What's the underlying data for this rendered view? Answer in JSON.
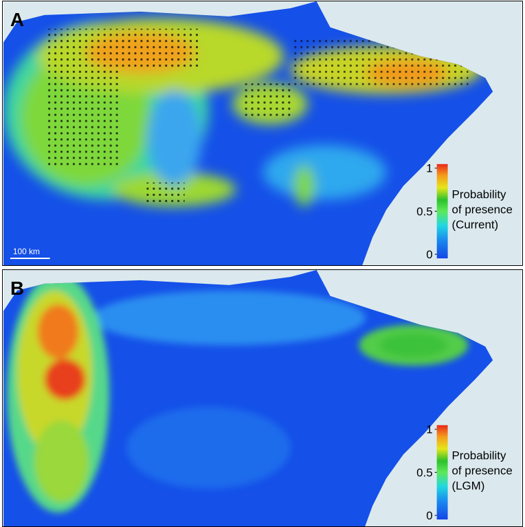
{
  "panels": [
    {
      "label": "A",
      "scale_bar": "100 km",
      "legend": {
        "title": [
          "Probability",
          "of presence",
          "(Current)"
        ],
        "ticks": [
          1,
          0.5,
          0
        ]
      }
    },
    {
      "label": "B",
      "legend": {
        "title": [
          "Probability",
          "of presence",
          "(LGM)"
        ],
        "ticks": [
          1,
          0.5,
          0
        ]
      }
    }
  ]
}
